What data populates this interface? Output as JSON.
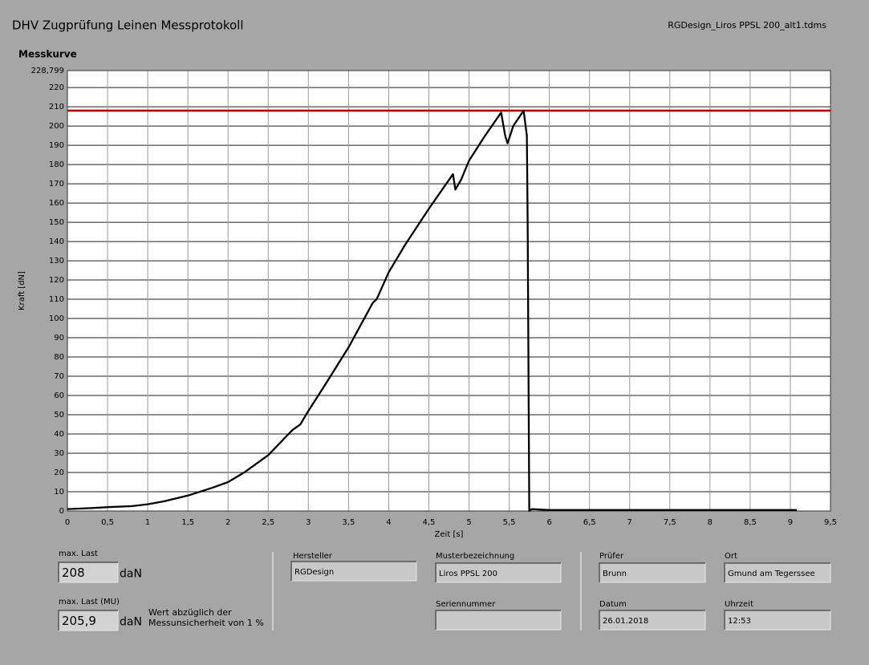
{
  "header": {
    "title": "DHV Zugprüfung Leinen Messprotokoll",
    "file": "RGDesign_Liros PPSL 200_alt1.tdms"
  },
  "chart_data": {
    "type": "line",
    "title": "Messkurve",
    "x_label": "Zeit [s]",
    "y_label": "Kraft [dN]",
    "x": [
      0,
      0.3,
      0.5,
      0.8,
      1,
      1.2,
      1.5,
      1.8,
      2,
      2.2,
      2.5,
      2.8,
      2.9,
      3,
      3.2,
      3.5,
      3.8,
      3.85,
      4,
      4.2,
      4.5,
      4.8,
      4.83,
      4.9,
      5,
      5.2,
      5.4,
      5.45,
      5.48,
      5.55,
      5.68,
      5.72,
      5.73,
      5.75,
      5.78,
      6,
      9.08
    ],
    "series": [
      {
        "color": "#000000",
        "values": [
          1,
          1.5,
          2,
          2.5,
          3.5,
          5,
          8,
          12,
          15,
          20,
          29,
          42,
          45,
          52,
          65,
          85,
          108,
          110,
          124,
          138,
          157,
          175,
          167,
          172,
          182,
          195,
          207,
          195,
          191,
          200,
          208,
          195,
          150,
          0,
          1,
          0.5,
          0.5
        ]
      }
    ],
    "reference_line": {
      "value": 208,
      "color": "#c00000"
    },
    "xlim": [
      0,
      9.5
    ],
    "ylim": [
      0,
      228.799
    ],
    "xticks": [
      0,
      {
        "value": 0.5,
        "label": "0,5"
      },
      1,
      {
        "value": 1.5,
        "label": "1,5"
      },
      2,
      {
        "value": 2.5,
        "label": "2,5"
      },
      3,
      {
        "value": 3.5,
        "label": "3,5"
      },
      4,
      {
        "value": 4.5,
        "label": "4,5"
      },
      5,
      {
        "value": 5.5,
        "label": "5,5"
      },
      6,
      {
        "value": 6.5,
        "label": "6,5"
      },
      7,
      {
        "value": 7.5,
        "label": "7,5"
      },
      8,
      {
        "value": 8.5,
        "label": "8,5"
      },
      9,
      {
        "value": 9.5,
        "label": "9,5"
      }
    ],
    "yticks": [
      0,
      10,
      20,
      30,
      40,
      50,
      60,
      70,
      80,
      90,
      100,
      110,
      120,
      130,
      140,
      150,
      160,
      170,
      180,
      190,
      200,
      210,
      220,
      {
        "value": 228.799,
        "label": "228,799"
      }
    ],
    "grid": true
  },
  "fields": [
    {
      "label": "max. Last",
      "value": "208",
      "unit": "daN"
    },
    {
      "label": "max. Last (MU)",
      "value": "205,9",
      "unit": "daN",
      "note": [
        "Wert abzüglich der",
        "Messunsicherheit von 1 %"
      ]
    },
    {
      "label": "Hersteller",
      "value": "RGDesign"
    },
    {
      "label": "Musterbezeichnung",
      "value": "Liros PPSL 200"
    },
    {
      "label": "Seriennummer"
    },
    {
      "label": "Prüfer",
      "value": "Brunn"
    },
    {
      "label": "Datum",
      "value": "26.01.2018"
    },
    {
      "label": "Ort",
      "value": "Gmund am Tegerssee"
    },
    {
      "label": "Uhrzeit",
      "value": "12:53"
    }
  ]
}
